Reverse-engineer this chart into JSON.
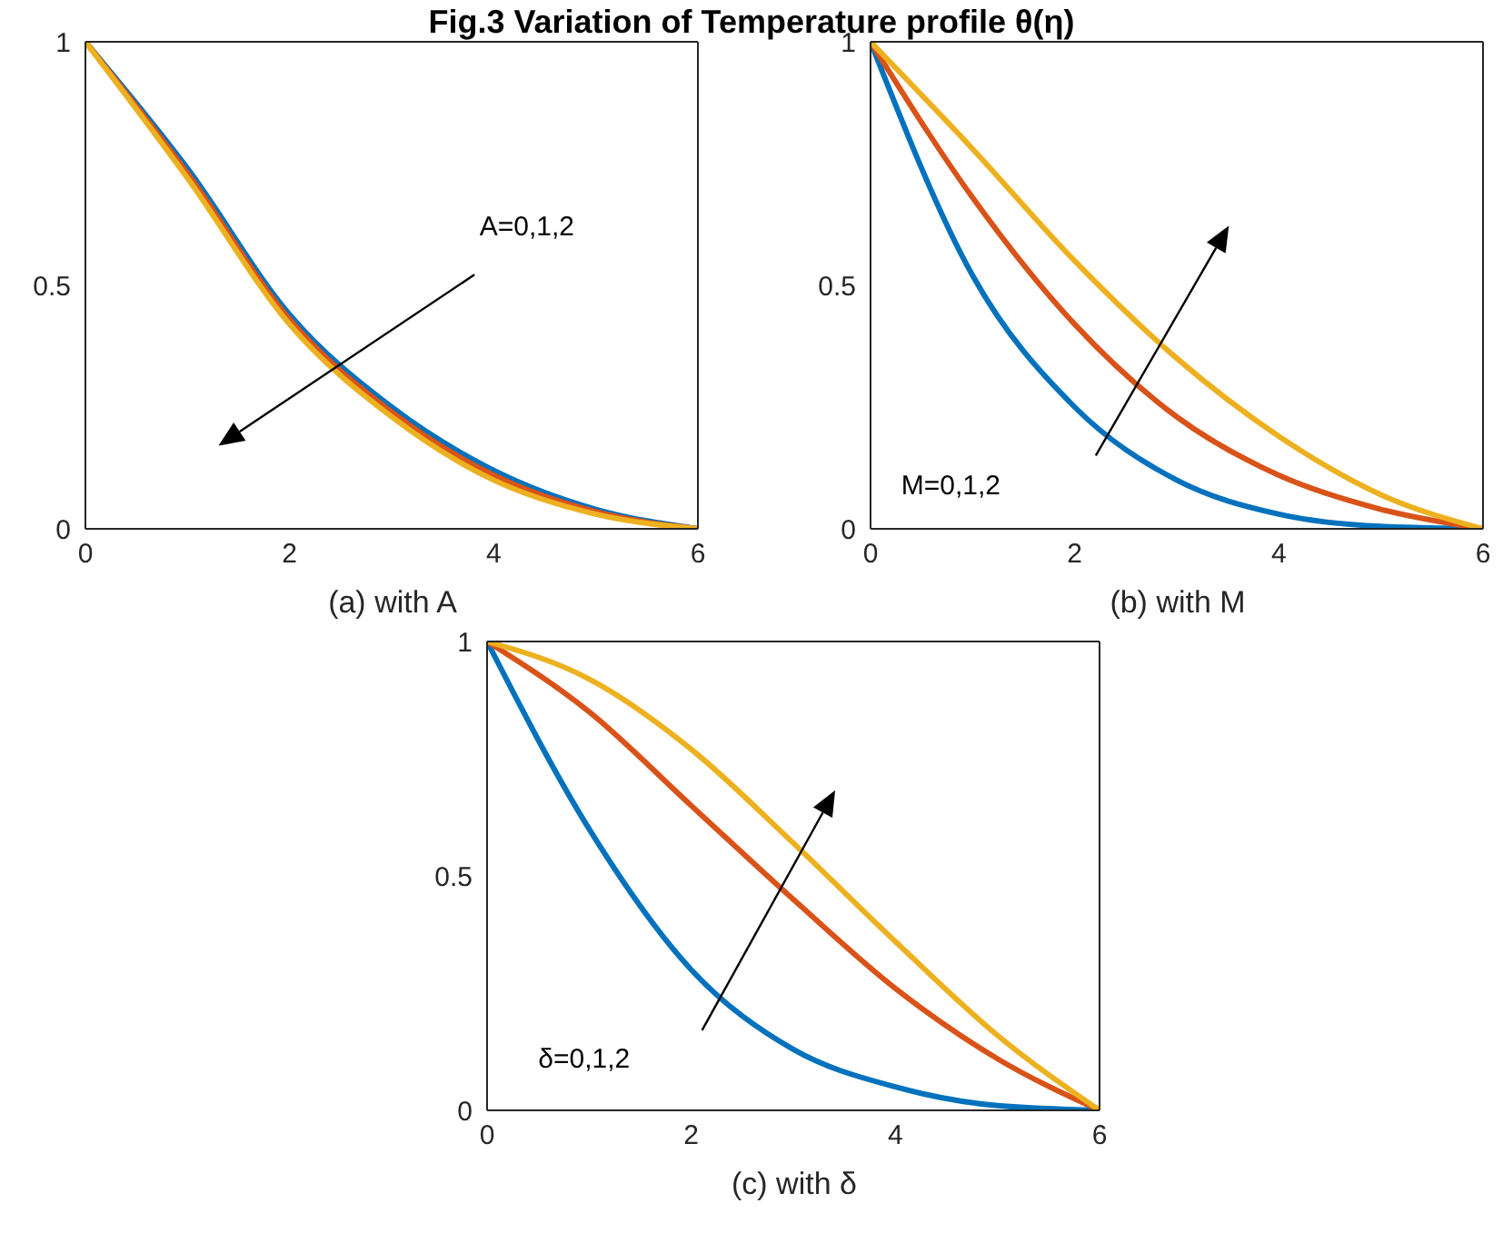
{
  "chart_data": [
    {
      "type": "line",
      "title": "Fig.3 Variation of Temperature profile θ(η)",
      "xlabel": "(a) with A",
      "annotations": [
        "A=0,1,2"
      ],
      "x": [
        0,
        1,
        2,
        3,
        4,
        5,
        6
      ],
      "xlim": [
        0,
        6
      ],
      "xticks": [
        0,
        2,
        4,
        6
      ],
      "ylim": [
        0,
        1
      ],
      "yticks": [
        0,
        0.5,
        1
      ],
      "marker": "none",
      "line_style": "solid",
      "series": [
        {
          "color": "#0072bd",
          "values": [
            1,
            0.74,
            0.44,
            0.25,
            0.12,
            0.04,
            0
          ]
        },
        {
          "color": "#d95319",
          "values": [
            1,
            0.73,
            0.43,
            0.24,
            0.11,
            0.035,
            0
          ]
        },
        {
          "color": "#edb120",
          "values": [
            1,
            0.72,
            0.42,
            0.23,
            0.1,
            0.03,
            0
          ]
        }
      ]
    },
    {
      "type": "line",
      "xlabel": "(b) with M",
      "annotations": [
        "M=0,1,2"
      ],
      "x": [
        0,
        1,
        2,
        3,
        4,
        5,
        6
      ],
      "xlim": [
        0,
        6
      ],
      "xticks": [
        0,
        2,
        4,
        6
      ],
      "ylim": [
        0,
        1
      ],
      "yticks": [
        0,
        0.5,
        1
      ],
      "marker": "none",
      "line_style": "solid",
      "series": [
        {
          "color": "#0072bd",
          "values": [
            1,
            0.52,
            0.25,
            0.1,
            0.03,
            0.005,
            0
          ]
        },
        {
          "color": "#d95319",
          "values": [
            1,
            0.68,
            0.42,
            0.23,
            0.11,
            0.04,
            0
          ]
        },
        {
          "color": "#edb120",
          "values": [
            1,
            0.78,
            0.55,
            0.35,
            0.19,
            0.07,
            0
          ]
        }
      ]
    },
    {
      "type": "line",
      "xlabel": "(c) with δ",
      "annotations": [
        "δ=0,1,2"
      ],
      "x": [
        0,
        1,
        2,
        3,
        4,
        5,
        6
      ],
      "xlim": [
        0,
        6
      ],
      "xticks": [
        0,
        2,
        4,
        6
      ],
      "ylim": [
        0,
        1
      ],
      "yticks": [
        0,
        0.5,
        1
      ],
      "marker": "none",
      "line_style": "solid",
      "series": [
        {
          "color": "#0072bd",
          "values": [
            1,
            0.6,
            0.3,
            0.13,
            0.05,
            0.01,
            0
          ]
        },
        {
          "color": "#d95319",
          "values": [
            1,
            0.85,
            0.65,
            0.45,
            0.26,
            0.11,
            0
          ]
        },
        {
          "color": "#edb120",
          "values": [
            1,
            0.92,
            0.77,
            0.57,
            0.36,
            0.16,
            0
          ]
        }
      ]
    }
  ]
}
